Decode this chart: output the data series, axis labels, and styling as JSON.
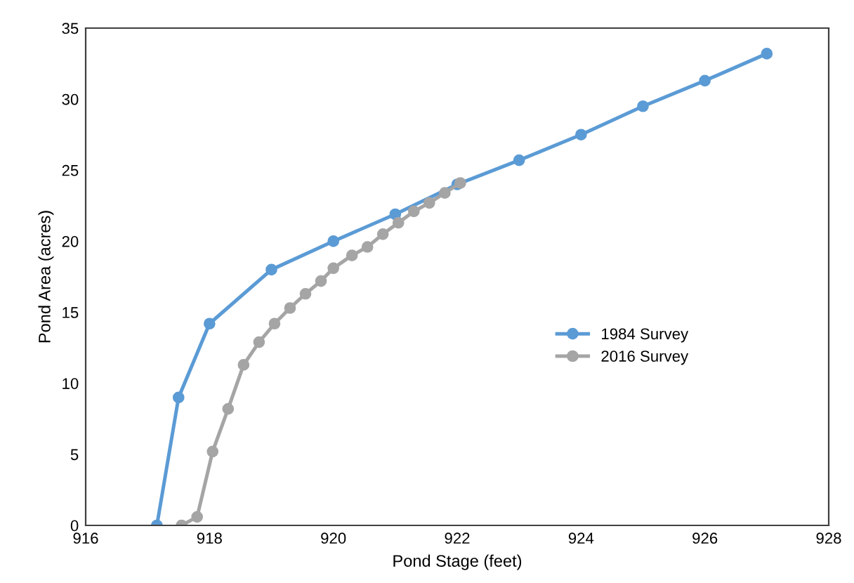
{
  "chart_data": {
    "type": "line",
    "xlabel": "Pond Stage (feet)",
    "ylabel": "Pond Area (acres)",
    "xlim": [
      916,
      928
    ],
    "xticks": [
      916,
      918,
      920,
      922,
      924,
      926,
      928
    ],
    "ylim": [
      0,
      35
    ],
    "yticks": [
      0,
      5,
      10,
      15,
      20,
      25,
      30,
      35
    ],
    "grid": false,
    "legend": "right",
    "marker": "circle",
    "line_style": "solid",
    "series": [
      {
        "name": "1984 Survey",
        "color": "#5b9bd5",
        "x": [
          917.15,
          917.5,
          918,
          919,
          920,
          921,
          922,
          923,
          924,
          925,
          926,
          927
        ],
        "values": [
          0,
          9.0,
          14.2,
          18.0,
          20.0,
          21.9,
          24.0,
          25.7,
          27.5,
          29.5,
          31.3,
          33.2
        ]
      },
      {
        "name": "2016 Survey",
        "color": "#a5a5a5",
        "x": [
          917.55,
          917.8,
          918.05,
          918.3,
          918.55,
          918.8,
          919.05,
          919.3,
          919.55,
          919.8,
          920.0,
          920.3,
          920.55,
          920.8,
          921.05,
          921.3,
          921.55,
          921.8,
          922.05
        ],
        "values": [
          0,
          0.6,
          5.2,
          8.2,
          11.3,
          12.9,
          14.2,
          15.3,
          16.3,
          17.2,
          18.1,
          19.0,
          19.6,
          20.5,
          21.3,
          22.1,
          22.7,
          23.4,
          24.1
        ]
      }
    ]
  }
}
